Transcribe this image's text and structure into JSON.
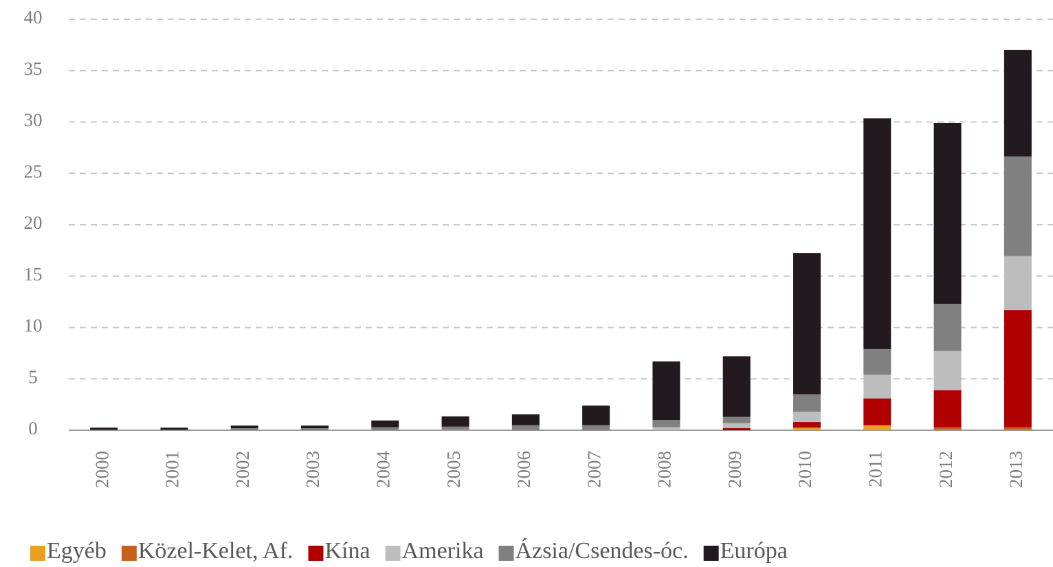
{
  "chart_data": {
    "type": "stacked_bar",
    "categories": [
      "2000",
      "2001",
      "2002",
      "2003",
      "2004",
      "2005",
      "2006",
      "2007",
      "2008",
      "2009",
      "2010",
      "2011",
      "2012",
      "2013"
    ],
    "series": [
      {
        "name": "Egyéb",
        "color": "#e8a020",
        "values": [
          0,
          0,
          0,
          0,
          0,
          0,
          0,
          0,
          0,
          0,
          0.2,
          0.45,
          0.05,
          0.05
        ]
      },
      {
        "name": "Közel-Kelet, Af.",
        "color": "#c8601a",
        "values": [
          0,
          0,
          0,
          0,
          0,
          0,
          0,
          0,
          0,
          0,
          0.1,
          0.05,
          0.25,
          0.25
        ]
      },
      {
        "name": "Kína",
        "color": "#b00000",
        "values": [
          0,
          0,
          0,
          0,
          0,
          0,
          0,
          0,
          0,
          0.2,
          0.5,
          2.6,
          3.6,
          11.4
        ]
      },
      {
        "name": "Amerika",
        "color": "#bdbdbd",
        "values": [
          0,
          0,
          0,
          0,
          0,
          0.05,
          0,
          0,
          0.3,
          0.5,
          1.0,
          2.3,
          3.8,
          5.25
        ]
      },
      {
        "name": "Ázsia/Csendes-óc.",
        "color": "#808080",
        "values": [
          0.05,
          0.05,
          0.2,
          0.2,
          0.3,
          0.3,
          0.5,
          0.5,
          0.7,
          0.6,
          1.7,
          2.5,
          4.6,
          9.7
        ]
      },
      {
        "name": "Európa",
        "color": "#231a1f",
        "values": [
          0.2,
          0.2,
          0.25,
          0.25,
          0.65,
          1.0,
          1.05,
          1.9,
          5.7,
          5.9,
          13.75,
          22.45,
          17.6,
          10.35
        ]
      }
    ],
    "ylim": [
      0,
      40
    ],
    "yticks": [
      0,
      5,
      10,
      15,
      20,
      25,
      30,
      35,
      40
    ],
    "grid": true,
    "legend": "bottom"
  }
}
